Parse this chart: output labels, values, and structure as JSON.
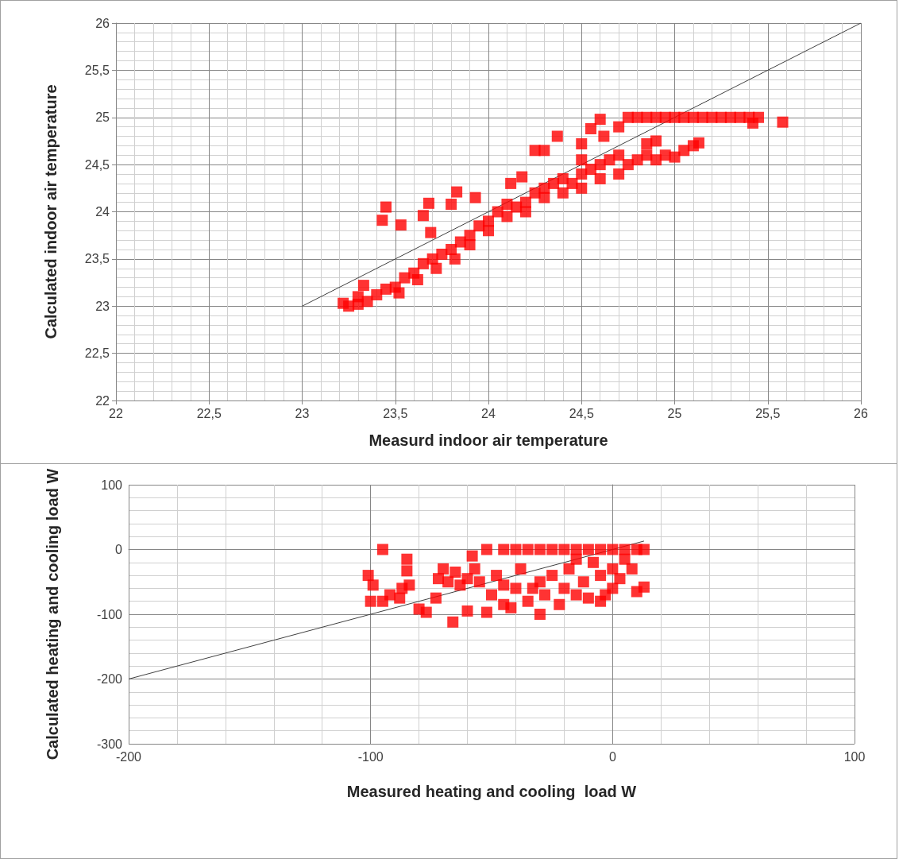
{
  "chart_data": [
    {
      "type": "scatter",
      "xlabel": "Measurd indoor air temperature",
      "ylabel": "Calculated indoor air temperature",
      "grid": true,
      "xlim": [
        22,
        26
      ],
      "ylim": [
        22,
        26
      ],
      "xticks": [
        22,
        {
          "value": 22.5,
          "label": "22,5"
        },
        23,
        {
          "value": 23.5,
          "label": "23,5"
        },
        24,
        {
          "value": 24.5,
          "label": "24,5"
        },
        25,
        {
          "value": 25.5,
          "label": "25,5"
        },
        26
      ],
      "yticks": [
        22,
        {
          "value": 22.5,
          "label": "22,5"
        },
        23,
        {
          "value": 23.5,
          "label": "23,5"
        },
        24,
        {
          "value": 24.5,
          "label": "24,5"
        },
        25,
        {
          "value": 25.5,
          "label": "25,5"
        },
        26
      ],
      "series": [
        {
          "marker": "square",
          "color": "#ff0000",
          "x": [
            23.22,
            23.25,
            23.3,
            23.35,
            23.3,
            23.33,
            23.4,
            23.45,
            23.5,
            23.52,
            23.55,
            23.6,
            23.62,
            23.65,
            23.7,
            23.72,
            23.75,
            23.8,
            23.82,
            23.85,
            23.9,
            23.9,
            23.95,
            24.0,
            24.0,
            24.05,
            24.1,
            24.1,
            24.15,
            24.2,
            24.2,
            24.25,
            24.3,
            24.3,
            24.35,
            24.4,
            24.4,
            24.45,
            24.5,
            24.5,
            24.55,
            24.6,
            24.6,
            24.65,
            24.7,
            24.7,
            24.75,
            24.8,
            24.85,
            24.9,
            24.95,
            25.0,
            25.05,
            25.1,
            25.13,
            24.85,
            24.9,
            23.43,
            23.45,
            23.53,
            23.65,
            23.68,
            23.69,
            23.83,
            23.8,
            23.93,
            24.18,
            24.12,
            24.25,
            24.3,
            24.37,
            24.5,
            24.55,
            24.6,
            24.62,
            24.7,
            24.5,
            24.75,
            24.8,
            24.85,
            24.9,
            24.95,
            25.0,
            25.05,
            25.1,
            25.15,
            25.2,
            25.25,
            25.3,
            25.35,
            25.4,
            25.45,
            25.42,
            25.58
          ],
          "values": [
            23.03,
            23.0,
            23.02,
            23.05,
            23.1,
            23.22,
            23.12,
            23.18,
            23.2,
            23.14,
            23.3,
            23.35,
            23.28,
            23.45,
            23.5,
            23.4,
            23.55,
            23.6,
            23.5,
            23.68,
            23.75,
            23.65,
            23.85,
            23.9,
            23.8,
            24.0,
            23.95,
            24.08,
            24.05,
            24.1,
            24.0,
            24.2,
            24.15,
            24.25,
            24.3,
            24.2,
            24.35,
            24.3,
            24.4,
            24.25,
            24.45,
            24.35,
            24.5,
            24.55,
            24.4,
            24.6,
            24.5,
            24.55,
            24.6,
            24.55,
            24.6,
            24.58,
            24.65,
            24.7,
            24.73,
            24.72,
            24.75,
            23.91,
            24.05,
            23.86,
            23.96,
            24.09,
            23.78,
            24.21,
            24.08,
            24.15,
            24.37,
            24.3,
            24.65,
            24.65,
            24.8,
            24.55,
            24.88,
            24.98,
            24.8,
            24.9,
            24.72,
            25.0,
            25.0,
            25.0,
            25.0,
            25.0,
            25.0,
            25.0,
            25.0,
            25.0,
            25.0,
            25.0,
            25.0,
            25.0,
            25.0,
            25.0,
            24.94,
            24.95
          ]
        },
        {
          "type": "line",
          "marker": "none",
          "color": "#404040",
          "x": [
            23,
            26
          ],
          "values": [
            23,
            26
          ]
        }
      ]
    },
    {
      "type": "scatter",
      "xlabel": "Measured heating and cooling  load W",
      "ylabel": "Calculated heating and cooling load W",
      "grid": true,
      "xlim": [
        -200,
        100
      ],
      "ylim": [
        -300,
        100
      ],
      "xticks": [
        -200,
        -100,
        0,
        100
      ],
      "yticks": [
        -300,
        -200,
        -100,
        0,
        100
      ],
      "series": [
        {
          "marker": "square",
          "color": "#ff0000",
          "x": [
            -45,
            -40,
            -35,
            -30,
            -25,
            -20,
            -15,
            -10,
            -5,
            0,
            5,
            10,
            13,
            -95,
            -101,
            -99,
            -100,
            -95,
            -92,
            -88,
            -85,
            -85,
            -84,
            -87,
            -80,
            -77,
            -73,
            -72,
            -70,
            -68,
            -66,
            -63,
            -60,
            -60,
            -58,
            -57,
            -55,
            -52,
            -52,
            -50,
            -48,
            -45,
            -42,
            -40,
            -38,
            -35,
            -30,
            -30,
            -28,
            -25,
            -22,
            -20,
            -18,
            -15,
            -12,
            -10,
            -8,
            -5,
            -3,
            0,
            0,
            3,
            5,
            8,
            10,
            13,
            -33,
            -65,
            -45,
            -15,
            -5
          ],
          "values": [
            0,
            0,
            0,
            0,
            0,
            0,
            0,
            0,
            0,
            0,
            0,
            0,
            0,
            0,
            -40,
            -55,
            -80,
            -80,
            -70,
            -75,
            -15,
            -33,
            -55,
            -60,
            -92,
            -97,
            -75,
            -45,
            -30,
            -50,
            -112,
            -55,
            -45,
            -95,
            -10,
            -30,
            -50,
            0,
            -97,
            -70,
            -40,
            -55,
            -90,
            -60,
            -30,
            -80,
            -100,
            -50,
            -70,
            -40,
            -85,
            -60,
            -30,
            -70,
            -50,
            -75,
            -20,
            -40,
            -70,
            -60,
            -30,
            -45,
            -15,
            -30,
            -65,
            -58,
            -60,
            -35,
            -85,
            -15,
            -80
          ]
        },
        {
          "type": "line",
          "marker": "none",
          "color": "#404040",
          "x": [
            -200,
            13
          ],
          "values": [
            -200,
            13
          ]
        }
      ]
    }
  ]
}
